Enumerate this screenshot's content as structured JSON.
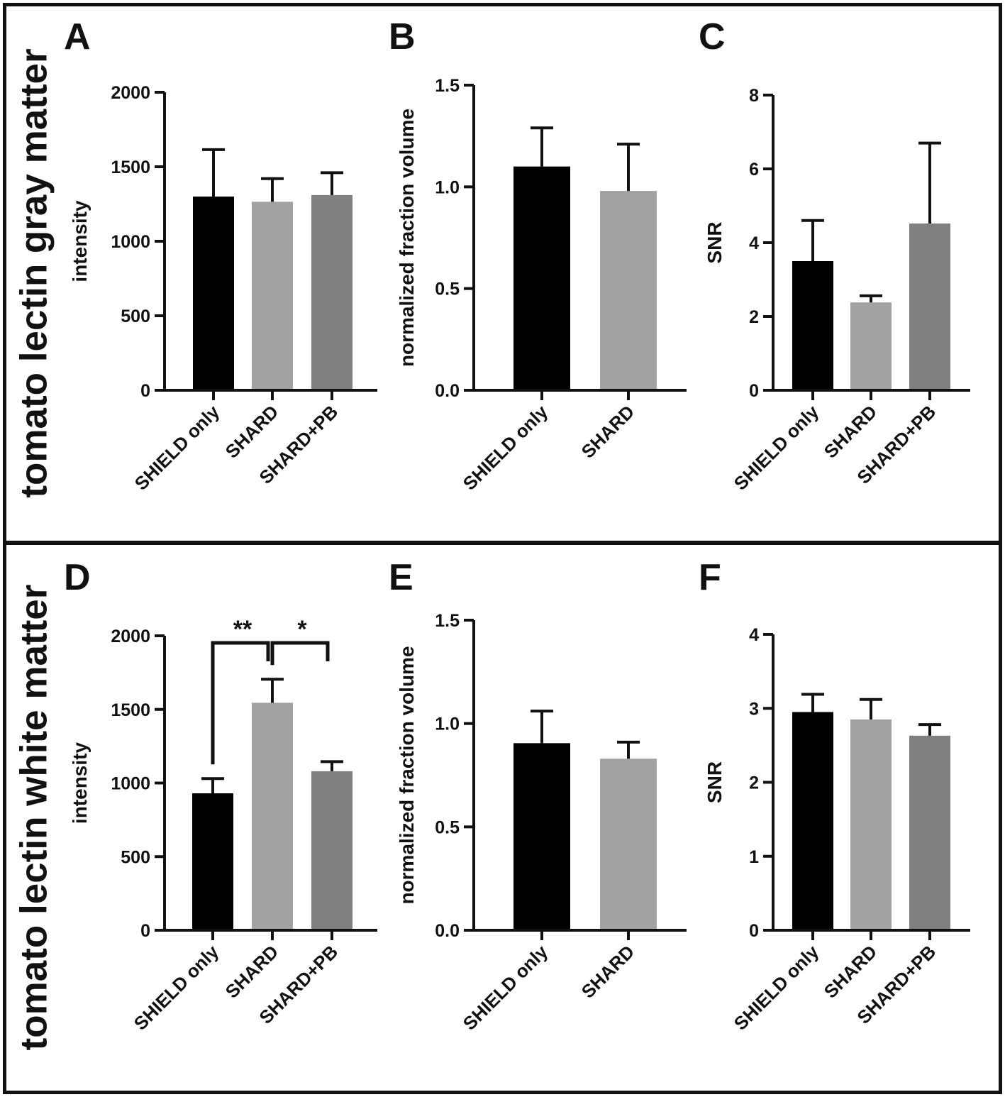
{
  "figure": {
    "rows": [
      {
        "title": "tomato lectin gray matter"
      },
      {
        "title": "tomato lectin white matter"
      }
    ]
  },
  "colors": {
    "bar1": "#000000",
    "bar2": "#a2a2a5",
    "bar3": "#808080",
    "axis": "#111111"
  },
  "chart_data": [
    {
      "panel": "A",
      "type": "bar",
      "ylabel": "intensity",
      "categories": [
        "SHIELD only",
        "SHARD",
        "SHARD+PB"
      ],
      "values": [
        1300,
        1265,
        1310
      ],
      "errors": [
        315,
        155,
        150
      ],
      "ylim": [
        0,
        2000
      ],
      "yticks": [
        0,
        500,
        1000,
        1500,
        2000
      ],
      "yticklabels": [
        "0",
        "500",
        "1000",
        "1500",
        "2000"
      ],
      "significance": []
    },
    {
      "panel": "B",
      "type": "bar",
      "ylabel": "normalized fraction volume",
      "categories": [
        "SHIELD only",
        "SHARD"
      ],
      "values": [
        1.1,
        0.98
      ],
      "errors": [
        0.19,
        0.23
      ],
      "ylim": [
        0,
        1.5
      ],
      "yticks": [
        0,
        0.5,
        1.0,
        1.5
      ],
      "yticklabels": [
        "0.0",
        "0.5",
        "1.0",
        "1.5"
      ],
      "significance": []
    },
    {
      "panel": "C",
      "type": "bar",
      "ylabel": "SNR",
      "categories": [
        "SHIELD only",
        "SHARD",
        "SHARD+PB"
      ],
      "values": [
        3.5,
        2.38,
        4.52
      ],
      "errors": [
        1.1,
        0.18,
        2.18
      ],
      "ylim": [
        0,
        8
      ],
      "yticks": [
        0,
        2,
        4,
        6,
        8
      ],
      "yticklabels": [
        "0",
        "2",
        "4",
        "6",
        "8"
      ],
      "significance": []
    },
    {
      "panel": "D",
      "type": "bar",
      "ylabel": "intensity",
      "categories": [
        "SHIELD only",
        "SHARD",
        "SHARD+PB"
      ],
      "values": [
        930,
        1545,
        1080
      ],
      "errors": [
        100,
        160,
        65
      ],
      "ylim": [
        0,
        2000
      ],
      "yticks": [
        0,
        500,
        1000,
        1500,
        2000
      ],
      "yticklabels": [
        "0",
        "500",
        "1000",
        "1500",
        "2000"
      ],
      "significance": [
        {
          "from": 0,
          "to": 1,
          "label": "**"
        },
        {
          "from": 1,
          "to": 2,
          "label": "*"
        }
      ]
    },
    {
      "panel": "E",
      "type": "bar",
      "ylabel": "normalized fraction volume",
      "categories": [
        "SHIELD only",
        "SHARD"
      ],
      "values": [
        0.905,
        0.83
      ],
      "errors": [
        0.155,
        0.08
      ],
      "ylim": [
        0,
        1.5
      ],
      "yticks": [
        0,
        0.5,
        1.0,
        1.5
      ],
      "yticklabels": [
        "0.0",
        "0.5",
        "1.0",
        "1.5"
      ],
      "significance": []
    },
    {
      "panel": "F",
      "type": "bar",
      "ylabel": "SNR",
      "categories": [
        "SHIELD only",
        "SHARD",
        "SHARD+PB"
      ],
      "values": [
        2.95,
        2.85,
        2.63
      ],
      "errors": [
        0.24,
        0.27,
        0.15
      ],
      "ylim": [
        0,
        4
      ],
      "yticks": [
        0,
        1,
        2,
        3,
        4
      ],
      "yticklabels": [
        "0",
        "1",
        "2",
        "3",
        "4"
      ],
      "significance": []
    }
  ]
}
